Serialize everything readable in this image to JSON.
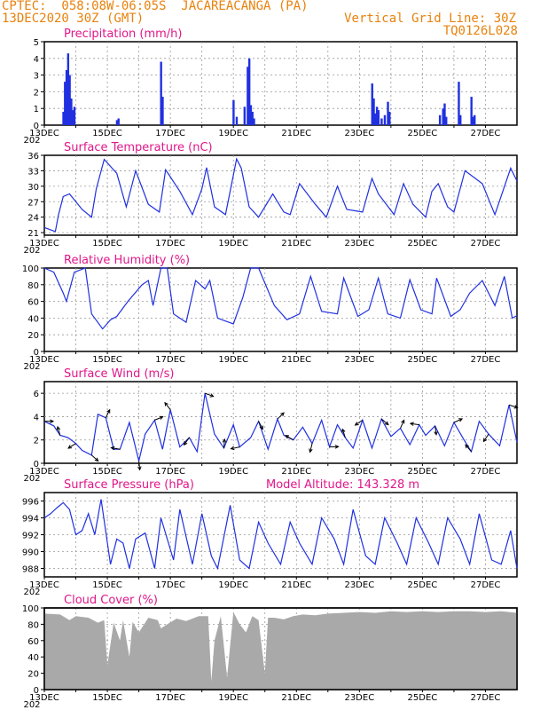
{
  "header": {
    "left_line1": "CPTEC:  058:08W-06:05S  JACAREACANGA (PA)",
    "left_line2": "13DEC2020 30Z (GMT)",
    "right_line1": "Vertical Grid Line: 30Z",
    "right_line2": "TQ0126L028"
  },
  "x_ticks": [
    "13DEC",
    "15DEC",
    "17DEC",
    "19DEC",
    "21DEC",
    "23DEC",
    "25DEC",
    "27DEC"
  ],
  "x_year": "202",
  "colors": {
    "header": "#e8820c",
    "title": "#e0178a",
    "line": "#2030e0",
    "cloud": "#a9a9a9"
  },
  "chart_data": [
    {
      "type": "bar",
      "title": "Precipitation (mm/h)",
      "ylim": [
        0,
        5
      ],
      "yticks": [
        "0",
        "1",
        "2",
        "3",
        "4",
        "5"
      ],
      "bars": [
        [
          0.6,
          0.8
        ],
        [
          0.65,
          2.6
        ],
        [
          0.7,
          3.3
        ],
        [
          0.75,
          4.3
        ],
        [
          0.8,
          3.0
        ],
        [
          0.85,
          1.6
        ],
        [
          0.9,
          0.9
        ],
        [
          0.95,
          1.1
        ],
        [
          2.3,
          0.3
        ],
        [
          2.35,
          0.4
        ],
        [
          3.7,
          3.8
        ],
        [
          3.75,
          1.7
        ],
        [
          6.0,
          1.5
        ],
        [
          6.1,
          0.5
        ],
        [
          6.35,
          1.1
        ],
        [
          6.45,
          3.5
        ],
        [
          6.5,
          4.0
        ],
        [
          6.55,
          1.2
        ],
        [
          6.6,
          0.8
        ],
        [
          6.65,
          0.4
        ],
        [
          10.4,
          2.5
        ],
        [
          10.45,
          1.6
        ],
        [
          10.5,
          0.7
        ],
        [
          10.55,
          1.1
        ],
        [
          10.6,
          0.9
        ],
        [
          10.7,
          0.4
        ],
        [
          10.8,
          0.6
        ],
        [
          10.9,
          1.4
        ],
        [
          10.95,
          0.8
        ],
        [
          12.55,
          0.6
        ],
        [
          12.65,
          1.0
        ],
        [
          12.7,
          1.3
        ],
        [
          12.75,
          0.5
        ],
        [
          13.15,
          2.6
        ],
        [
          13.2,
          0.6
        ],
        [
          13.55,
          1.7
        ],
        [
          13.6,
          0.5
        ],
        [
          13.65,
          0.6
        ]
      ]
    },
    {
      "type": "line",
      "title": "Surface Temperature (nC)",
      "ylim": [
        20.5,
        36
      ],
      "yticks": [
        "21",
        "24",
        "27",
        "30",
        "33",
        "36"
      ],
      "x": [
        0,
        0.35,
        0.45,
        0.6,
        0.8,
        1.2,
        1.5,
        1.65,
        1.9,
        2.3,
        2.6,
        2.9,
        3.3,
        3.65,
        3.85,
        4.3,
        4.7,
        5.0,
        5.15,
        5.4,
        5.75,
        6.1,
        6.25,
        6.5,
        6.8,
        7.25,
        7.6,
        7.8,
        8.1,
        8.6,
        8.95,
        9.3,
        9.6,
        10.1,
        10.4,
        10.6,
        11.1,
        11.4,
        11.7,
        12.1,
        12.3,
        12.5,
        12.8,
        13.0,
        13.35,
        13.9,
        14.3,
        14.8,
        15.0
      ],
      "y": [
        22.0,
        21.2,
        24.5,
        28.0,
        28.5,
        25.5,
        24.0,
        29.5,
        35.2,
        32.5,
        26.0,
        33.0,
        26.5,
        25.0,
        33.2,
        29.0,
        24.5,
        29.5,
        33.6,
        26.0,
        24.5,
        35.3,
        33.5,
        26.0,
        24.0,
        28.5,
        25.0,
        24.5,
        30.5,
        26.5,
        24.0,
        30.0,
        25.5,
        25.0,
        31.5,
        28.5,
        24.5,
        30.5,
        26.5,
        24.0,
        29.0,
        30.5,
        26.0,
        25.0,
        33.0,
        30.5,
        24.5,
        33.5,
        31.0
      ]
    },
    {
      "type": "line",
      "title": "Relative Humidity (%)",
      "ylim": [
        0,
        100
      ],
      "yticks": [
        "0",
        "20",
        "40",
        "60",
        "80",
        "100"
      ],
      "x": [
        0,
        0.3,
        0.6,
        0.7,
        0.95,
        1.3,
        1.5,
        1.85,
        2.1,
        2.3,
        2.65,
        3.1,
        3.3,
        3.45,
        3.7,
        3.9,
        4.1,
        4.5,
        4.8,
        5.1,
        5.25,
        5.5,
        6.0,
        6.3,
        6.55,
        6.8,
        7.3,
        7.7,
        8.1,
        8.45,
        8.8,
        9.3,
        9.5,
        9.95,
        10.3,
        10.6,
        10.9,
        11.3,
        11.6,
        11.95,
        12.3,
        12.45,
        12.9,
        13.2,
        13.5,
        13.9,
        14.3,
        14.6,
        14.85,
        15.0
      ],
      "y": [
        100,
        95,
        70,
        60,
        95,
        100,
        45,
        27,
        38,
        42,
        60,
        80,
        85,
        55,
        100,
        100,
        45,
        35,
        85,
        75,
        85,
        40,
        33,
        65,
        100,
        100,
        55,
        38,
        45,
        90,
        48,
        45,
        88,
        42,
        50,
        88,
        45,
        40,
        86,
        50,
        45,
        88,
        42,
        50,
        70,
        85,
        55,
        90,
        40,
        43
      ]
    },
    {
      "type": "line",
      "title": "Surface Wind (m/s)",
      "ylim": [
        0,
        7
      ],
      "yticks": [
        "0",
        "2",
        "4",
        "6"
      ],
      "x": [
        0,
        0.3,
        0.5,
        0.75,
        1.0,
        1.2,
        1.5,
        1.7,
        1.95,
        2.2,
        2.4,
        2.7,
        3.0,
        3.2,
        3.5,
        3.75,
        4.0,
        4.3,
        4.6,
        4.85,
        5.1,
        5.4,
        5.7,
        6.0,
        6.2,
        6.55,
        6.8,
        7.1,
        7.4,
        7.6,
        7.9,
        8.2,
        8.5,
        8.8,
        9.05,
        9.3,
        9.55,
        9.8,
        10.1,
        10.4,
        10.7,
        11.0,
        11.3,
        11.6,
        11.9,
        12.1,
        12.4,
        12.7,
        13.0,
        13.3,
        13.55,
        13.8,
        14.1,
        14.45,
        14.75,
        15.0
      ],
      "y": [
        3.6,
        3.2,
        2.4,
        2.2,
        1.7,
        1.1,
        0.7,
        4.2,
        3.9,
        1.2,
        1.2,
        3.5,
        0.2,
        2.5,
        3.7,
        1.2,
        4.6,
        1.4,
        2.2,
        1.0,
        6.0,
        2.5,
        1.3,
        3.3,
        1.4,
        2.2,
        3.6,
        1.2,
        3.8,
        2.4,
        2.0,
        3.1,
        1.7,
        3.7,
        1.4,
        3.3,
        2.2,
        1.3,
        3.7,
        1.3,
        3.8,
        2.3,
        3.0,
        1.6,
        3.3,
        2.4,
        3.2,
        1.5,
        3.5,
        2.1,
        1.0,
        3.6,
        2.5,
        1.5,
        5.0,
        1.8
      ]
    },
    {
      "type": "line",
      "title": "Surface Pressure (hPa)",
      "annotation": "Model Altitude: 143.328 m",
      "ylim": [
        987,
        997
      ],
      "yticks": [
        "988",
        "990",
        "992",
        "994",
        "996"
      ],
      "x": [
        0,
        0.2,
        0.4,
        0.6,
        0.8,
        1.0,
        1.2,
        1.4,
        1.6,
        1.8,
        2.1,
        2.3,
        2.5,
        2.7,
        2.9,
        3.2,
        3.5,
        3.7,
        4.1,
        4.3,
        4.7,
        5.0,
        5.3,
        5.5,
        5.9,
        6.2,
        6.5,
        6.8,
        7.1,
        7.5,
        7.8,
        8.1,
        8.5,
        8.8,
        9.2,
        9.5,
        9.8,
        10.2,
        10.5,
        10.8,
        11.2,
        11.5,
        11.8,
        12.2,
        12.5,
        12.8,
        13.2,
        13.5,
        13.8,
        14.2,
        14.5,
        14.8,
        15.0
      ],
      "y": [
        994.0,
        994.5,
        995.2,
        995.8,
        995.0,
        992.0,
        992.5,
        994.5,
        992.0,
        996.2,
        988.5,
        991.5,
        991.0,
        988.0,
        991.5,
        992.2,
        988.0,
        994.0,
        989.0,
        995.0,
        988.5,
        994.5,
        989.5,
        988.0,
        995.5,
        989.0,
        988.0,
        993.5,
        991.0,
        988.5,
        993.5,
        991.0,
        988.5,
        994.0,
        991.5,
        988.5,
        995.0,
        989.5,
        988.5,
        994.0,
        991.0,
        988.5,
        994.0,
        991.0,
        988.5,
        994.0,
        991.5,
        988.5,
        994.5,
        989.0,
        988.5,
        992.5,
        988.0
      ]
    },
    {
      "type": "area",
      "title": "Cloud Cover (%)",
      "ylim": [
        0,
        100
      ],
      "yticks": [
        "0",
        "20",
        "40",
        "60",
        "80",
        "100"
      ],
      "x": [
        0,
        0.5,
        0.8,
        1.0,
        1.4,
        1.7,
        1.9,
        2.0,
        2.2,
        2.4,
        2.5,
        2.7,
        2.8,
        3.0,
        3.3,
        3.6,
        3.7,
        3.9,
        4.2,
        4.5,
        4.9,
        5.2,
        5.3,
        5.4,
        5.6,
        5.8,
        6.0,
        6.2,
        6.4,
        6.6,
        6.8,
        7.0,
        7.1,
        7.3,
        7.6,
        7.9,
        8.2,
        8.6,
        9.0,
        9.5,
        10.0,
        10.5,
        11.0,
        11.5,
        12.0,
        12.5,
        13.0,
        13.5,
        14.0,
        14.5,
        15.0
      ],
      "y": [
        93,
        92,
        85,
        90,
        88,
        82,
        85,
        30,
        82,
        60,
        85,
        40,
        83,
        70,
        88,
        85,
        75,
        80,
        87,
        84,
        90,
        90,
        10,
        60,
        90,
        15,
        95,
        80,
        70,
        90,
        85,
        20,
        88,
        88,
        86,
        90,
        92,
        91,
        93,
        94,
        95,
        94,
        96,
        95,
        96,
        95,
        96,
        96,
        95,
        96,
        94
      ]
    }
  ]
}
